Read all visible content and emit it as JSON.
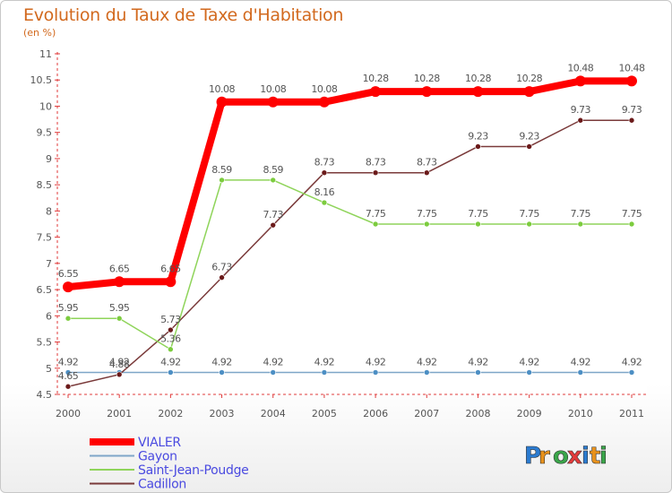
{
  "chart_data": {
    "type": "line",
    "title": "Evolution du Taux de Taxe d'Habitation",
    "ylabel": "(en %)",
    "xlabel": "",
    "x": [
      "2000",
      "2001",
      "2002",
      "2003",
      "2004",
      "2005",
      "2006",
      "2007",
      "2008",
      "2009",
      "2010",
      "2011"
    ],
    "ylim": [
      4.5,
      11
    ],
    "yticks": [
      "4.5",
      "5",
      "5.5",
      "6",
      "6.5",
      "7",
      "7.5",
      "8",
      "8.5",
      "9",
      "9.5",
      "10",
      "10.5",
      "11"
    ],
    "grid": false,
    "legend_position": "bottom-left",
    "series": [
      {
        "name": "VIALER",
        "color": "#ff0000",
        "width": 8,
        "marker_color": "#ff0000",
        "values": [
          6.55,
          6.65,
          6.65,
          10.08,
          10.08,
          10.08,
          10.28,
          10.28,
          10.28,
          10.28,
          10.48,
          10.48
        ],
        "labels": [
          "6.55",
          "6.65",
          "6.65",
          "10.08",
          "10.08",
          "10.08",
          "10.28",
          "10.28",
          "10.28",
          "10.28",
          "10.48",
          "10.48"
        ]
      },
      {
        "name": "Gayon",
        "color": "#7ea6c8",
        "width": 1.5,
        "marker_color": "#4d8fc4",
        "values": [
          4.92,
          4.92,
          4.92,
          4.92,
          4.92,
          4.92,
          4.92,
          4.92,
          4.92,
          4.92,
          4.92,
          4.92
        ],
        "labels": [
          "4.92",
          "4.92",
          "4.92",
          "4.92",
          "4.92",
          "4.92",
          "4.92",
          "4.92",
          "4.92",
          "4.92",
          "4.92",
          "4.92"
        ]
      },
      {
        "name": "Saint-Jean-Poudge",
        "color": "#8fd45a",
        "width": 1.5,
        "marker_color": "#7ccc3e",
        "values": [
          5.95,
          5.95,
          5.36,
          8.59,
          8.59,
          8.16,
          7.75,
          7.75,
          7.75,
          7.75,
          7.75,
          7.75
        ],
        "labels": [
          "5.95",
          "5.95",
          "5.36",
          "8.59",
          "8.59",
          "8.16",
          "7.75",
          "7.75",
          "7.75",
          "7.75",
          "7.75",
          "7.75"
        ]
      },
      {
        "name": "Cadillon",
        "color": "#7a3a3a",
        "width": 1.5,
        "marker_color": "#6b1a1a",
        "values": [
          4.65,
          4.88,
          5.73,
          6.73,
          7.73,
          8.73,
          8.73,
          8.73,
          9.23,
          9.23,
          9.73,
          9.73
        ],
        "labels": [
          "4.65",
          "4.88",
          "5.73",
          "6.73",
          "7.73",
          "8.73",
          "8.73",
          "8.73",
          "9.23",
          "9.23",
          "9.73",
          "9.73"
        ]
      }
    ]
  },
  "logo": {
    "text": "Proxiti",
    "letters": [
      "P",
      "r",
      "o",
      "x",
      "i",
      "t",
      "i"
    ],
    "colors": [
      "#2b7bd0",
      "#e8921c",
      "#3aa64a",
      "#e23b3b",
      "#2b7bd0",
      "#e8921c",
      "#3aa64a"
    ]
  }
}
